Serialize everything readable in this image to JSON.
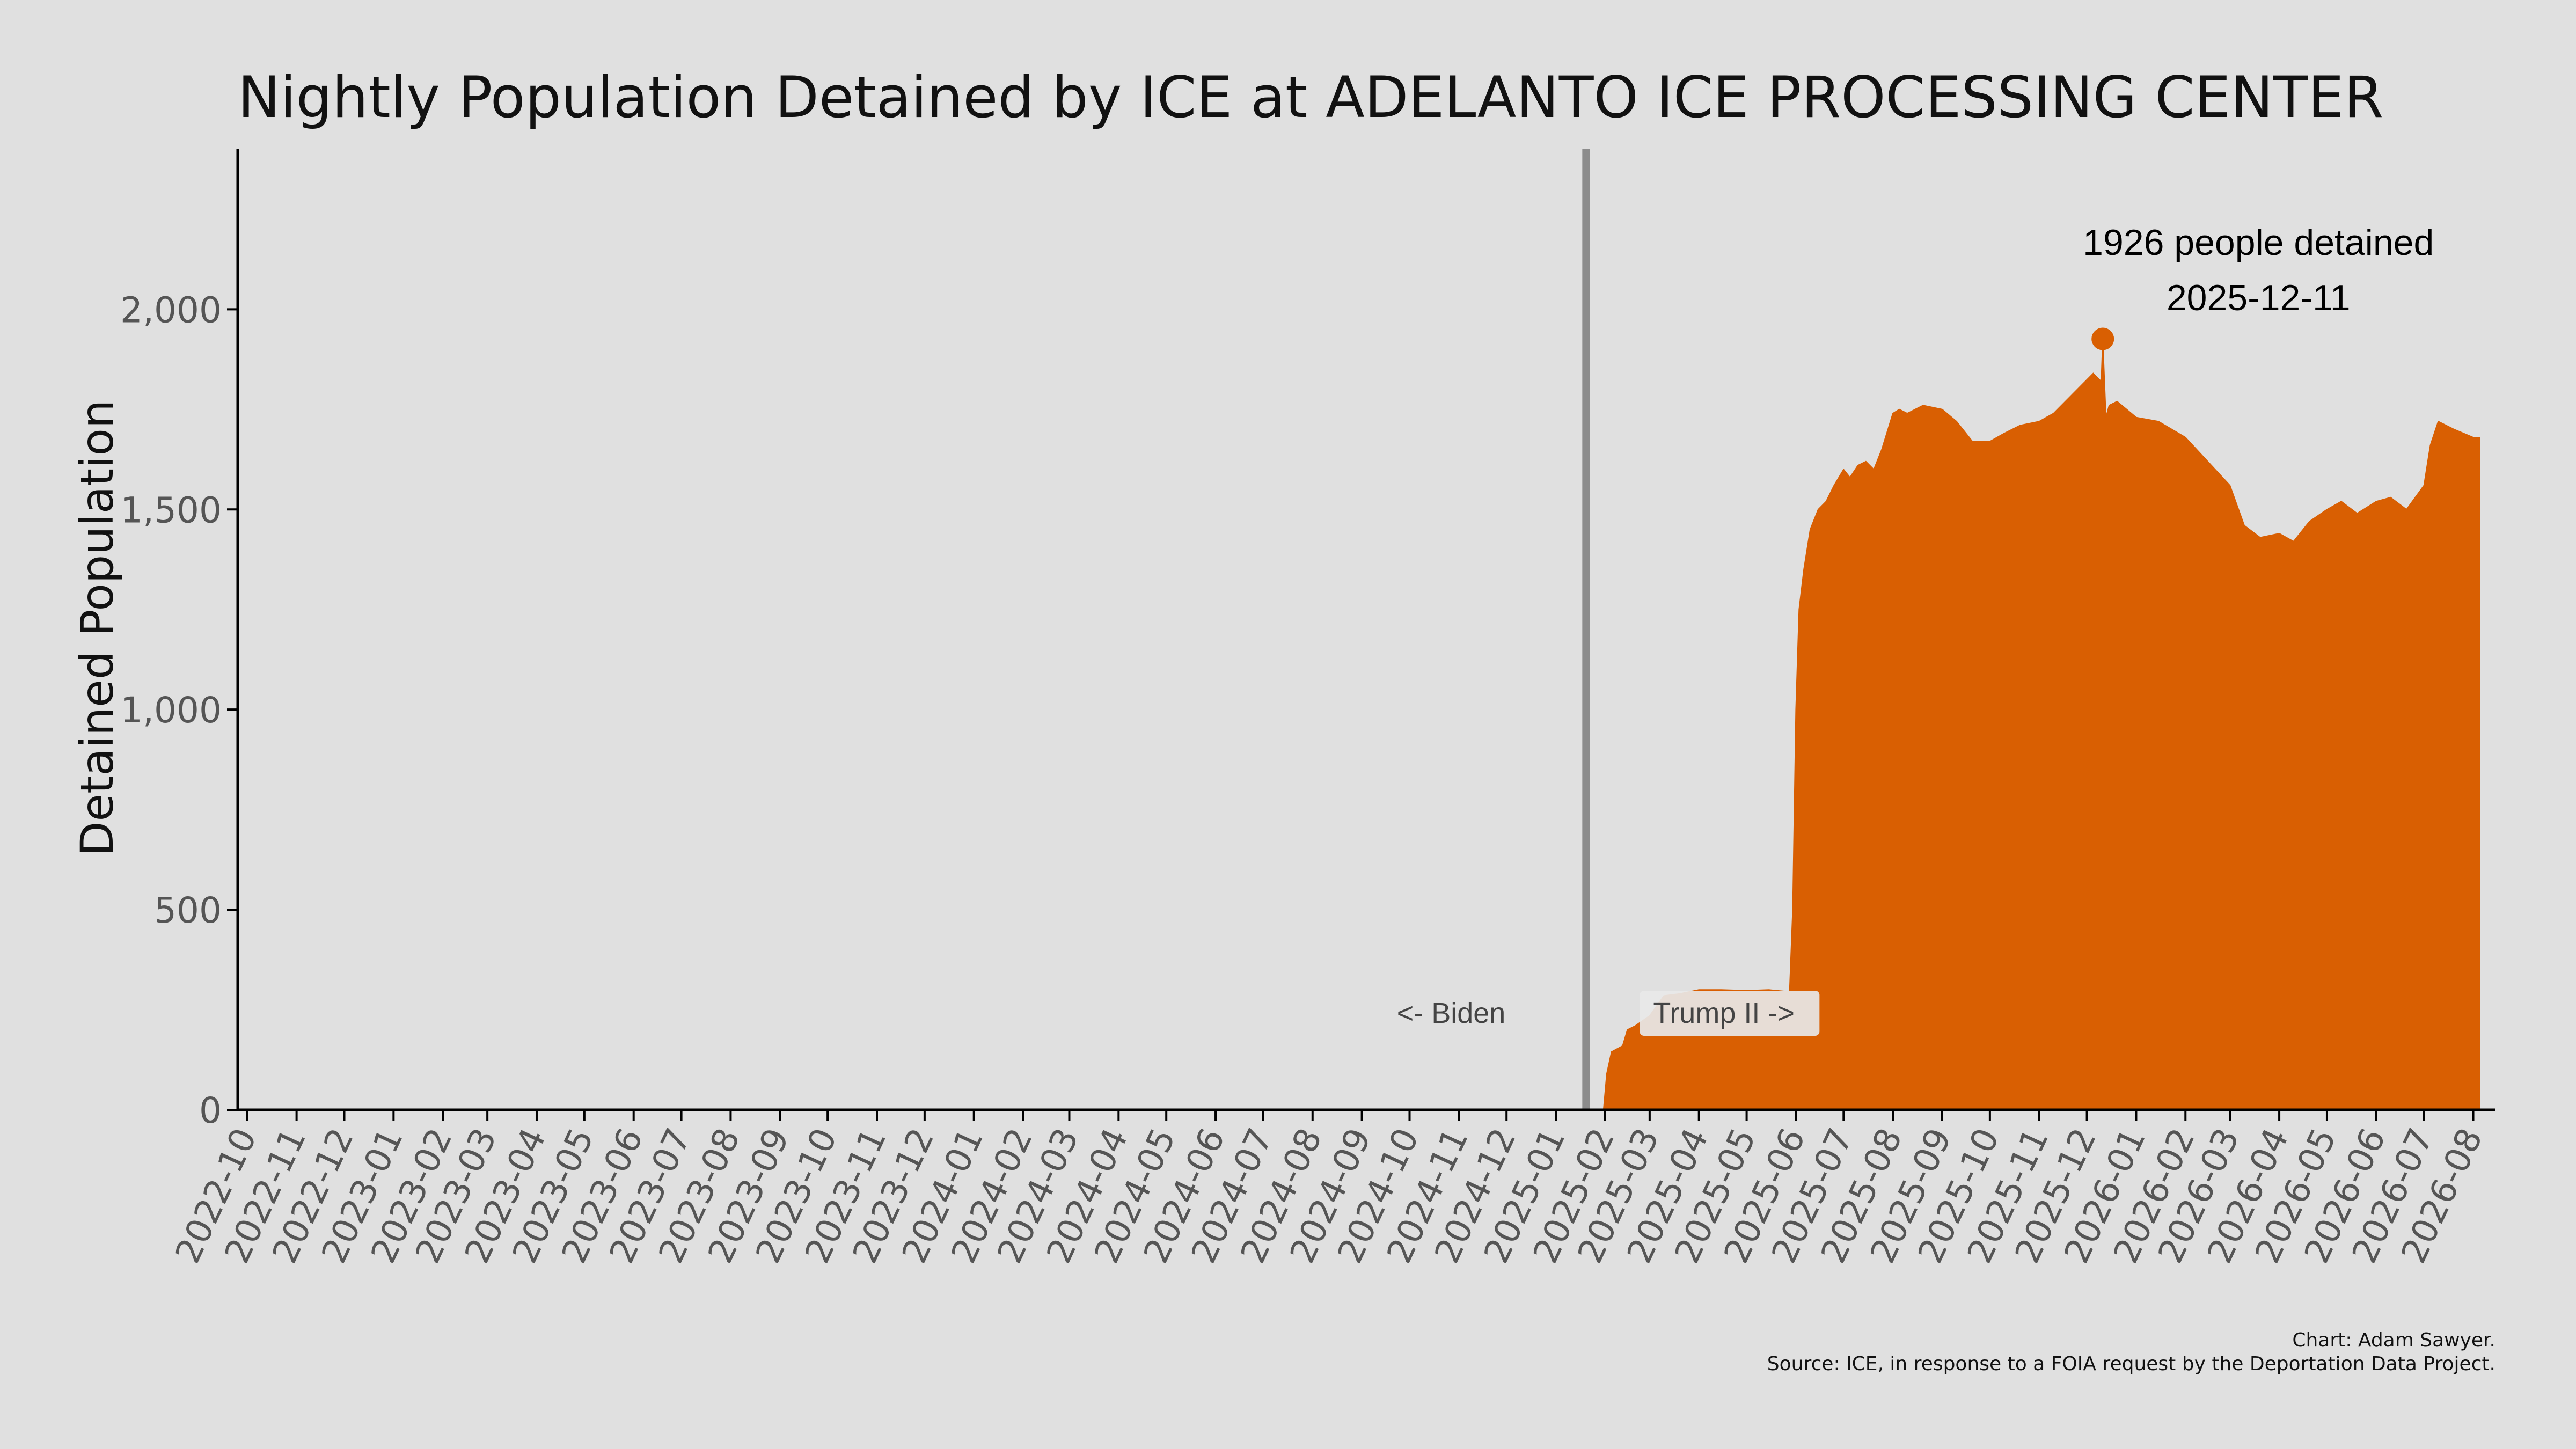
{
  "chart_data": {
    "type": "area",
    "title": "Nightly Population Detained by ICE at ADELANTO ICE PROCESSING CENTER",
    "xlabel": "",
    "ylabel": "Detained Population",
    "ylim": [
      0,
      2400
    ],
    "xlim": [
      "2022-09-25",
      "2026-08-15"
    ],
    "grid": false,
    "colors": {
      "fill": "#d95f02",
      "divider": "#8c8c8c",
      "background": "#e0e0e0",
      "axis": "#000000"
    },
    "y_ticks": [
      {
        "value": 0,
        "label": "0"
      },
      {
        "value": 500,
        "label": "500"
      },
      {
        "value": 1000,
        "label": "1,000"
      },
      {
        "value": 1500,
        "label": "1,500"
      },
      {
        "value": 2000,
        "label": "2,000"
      }
    ],
    "x_ticks": [
      "2022-10",
      "2022-11",
      "2022-12",
      "2023-01",
      "2023-02",
      "2023-03",
      "2023-04",
      "2023-05",
      "2023-06",
      "2023-07",
      "2023-08",
      "2023-09",
      "2023-10",
      "2023-11",
      "2023-12",
      "2024-01",
      "2024-02",
      "2024-03",
      "2024-04",
      "2024-05",
      "2024-06",
      "2024-07",
      "2024-08",
      "2024-09",
      "2024-10",
      "2024-11",
      "2024-12",
      "2025-01",
      "2025-02",
      "2025-03",
      "2025-04",
      "2025-05",
      "2025-06",
      "2025-07",
      "2025-08",
      "2025-09",
      "2025-10",
      "2025-11",
      "2025-12",
      "2026-01",
      "2026-02",
      "2026-03",
      "2026-04",
      "2026-05",
      "2026-06",
      "2026-07",
      "2026-08"
    ],
    "series": [
      {
        "x": [
          "2025-01-31",
          "2025-02-02",
          "2025-02-05",
          "2025-02-12",
          "2025-02-15",
          "2025-02-20",
          "2025-03-01",
          "2025-03-10",
          "2025-03-20",
          "2025-04-01",
          "2025-04-15",
          "2025-05-01",
          "2025-05-15",
          "2025-05-28",
          "2025-05-30",
          "2025-06-01",
          "2025-06-03",
          "2025-06-06",
          "2025-06-10",
          "2025-06-15",
          "2025-06-20",
          "2025-06-25",
          "2025-07-01",
          "2025-07-05",
          "2025-07-10",
          "2025-07-15",
          "2025-07-20",
          "2025-07-25",
          "2025-08-01",
          "2025-08-05",
          "2025-08-10",
          "2025-08-15",
          "2025-08-20",
          "2025-09-01",
          "2025-09-10",
          "2025-09-20",
          "2025-10-01",
          "2025-10-10",
          "2025-10-20",
          "2025-11-01",
          "2025-11-10",
          "2025-11-20",
          "2025-11-30",
          "2025-12-05",
          "2025-12-10",
          "2025-12-11",
          "2025-12-13",
          "2025-12-15",
          "2025-12-20",
          "2026-01-01",
          "2026-01-15",
          "2026-02-01",
          "2026-02-15",
          "2026-03-01",
          "2026-03-10",
          "2026-03-20",
          "2026-04-01",
          "2026-04-10",
          "2026-04-20",
          "2026-05-01",
          "2026-05-10",
          "2026-05-20",
          "2026-06-01",
          "2026-06-10",
          "2026-06-20",
          "2026-07-01",
          "2026-07-05",
          "2026-07-10",
          "2026-07-20",
          "2026-08-01",
          "2026-08-05"
        ],
        "values": [
          0,
          90,
          145,
          160,
          200,
          210,
          235,
          285,
          290,
          300,
          300,
          298,
          300,
          295,
          500,
          1000,
          1250,
          1350,
          1450,
          1500,
          1520,
          1560,
          1600,
          1580,
          1610,
          1620,
          1600,
          1650,
          1740,
          1750,
          1740,
          1750,
          1760,
          1750,
          1720,
          1670,
          1670,
          1690,
          1710,
          1720,
          1740,
          1780,
          1820,
          1840,
          1820,
          1926,
          1730,
          1760,
          1770,
          1730,
          1720,
          1680,
          1620,
          1560,
          1460,
          1430,
          1440,
          1420,
          1470,
          1500,
          1520,
          1490,
          1520,
          1530,
          1500,
          1560,
          1660,
          1720,
          1700,
          1680,
          1680
        ]
      }
    ],
    "peak": {
      "x": "2025-12-11",
      "value": 1926,
      "label_line1": "1926 people detained",
      "label_line2": "2025-12-11"
    },
    "divider_date": "2025-01-20",
    "era_left_label": "<- Biden",
    "era_right_label": "Trump II ->",
    "credit_line1": "Chart: Adam Sawyer.",
    "credit_line2": "Source: ICE, in response to a FOIA request by the Deportation Data Project."
  }
}
